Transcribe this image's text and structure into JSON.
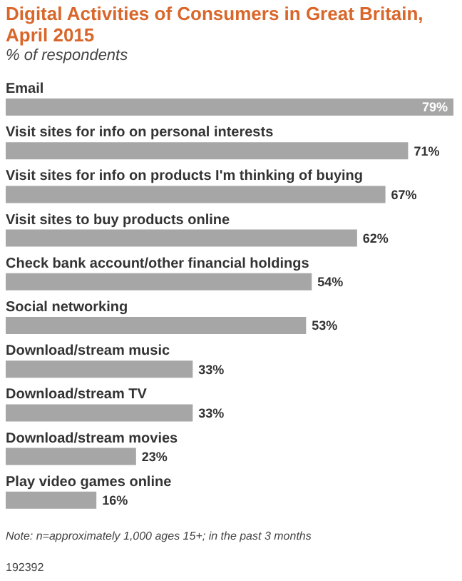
{
  "chart_data": {
    "type": "bar",
    "orientation": "horizontal",
    "title": "Digital Activities of Consumers in Great Britain, April 2015",
    "subtitle": "% of respondents",
    "categories": [
      "Email",
      "Visit sites for info on personal interests",
      "Visit sites for info on products I'm thinking of buying",
      "Visit sites to buy products online",
      "Check bank account/other financial holdings",
      "Social networking",
      "Download/stream music",
      "Download/stream TV",
      "Download/stream movies",
      "Play video games online"
    ],
    "values": [
      79,
      71,
      67,
      62,
      54,
      53,
      33,
      33,
      23,
      16
    ],
    "value_labels": [
      "79%",
      "71%",
      "67%",
      "62%",
      "54%",
      "53%",
      "33%",
      "33%",
      "23%",
      "16%"
    ],
    "color": "#a6a6a6",
    "annotations": [
      "Note: n=approximately 1,000 ages 15+; in the past 3 months",
      "192392"
    ]
  }
}
